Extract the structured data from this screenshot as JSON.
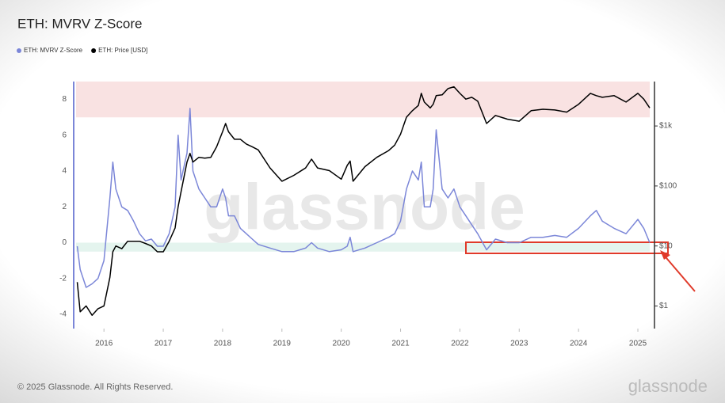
{
  "chart_data": {
    "type": "line",
    "title": "ETH: MVRV Z-Score",
    "watermark": "glassnode",
    "x": [
      2015.55,
      2015.6,
      2015.7,
      2015.8,
      2015.9,
      2016.0,
      2016.1,
      2016.15,
      2016.2,
      2016.3,
      2016.4,
      2016.5,
      2016.6,
      2016.7,
      2016.8,
      2016.9,
      2017.0,
      2017.1,
      2017.2,
      2017.25,
      2017.3,
      2017.4,
      2017.45,
      2017.5,
      2017.6,
      2017.7,
      2017.8,
      2017.9,
      2018.0,
      2018.05,
      2018.1,
      2018.2,
      2018.3,
      2018.4,
      2018.5,
      2018.6,
      2018.8,
      2019.0,
      2019.2,
      2019.4,
      2019.5,
      2019.6,
      2019.8,
      2020.0,
      2020.1,
      2020.15,
      2020.2,
      2020.4,
      2020.6,
      2020.8,
      2020.9,
      2021.0,
      2021.1,
      2021.2,
      2021.3,
      2021.35,
      2021.4,
      2021.5,
      2021.55,
      2021.6,
      2021.7,
      2021.8,
      2021.9,
      2022.0,
      2022.1,
      2022.2,
      2022.3,
      2022.45,
      2022.6,
      2022.8,
      2023.0,
      2023.2,
      2023.4,
      2023.6,
      2023.8,
      2024.0,
      2024.2,
      2024.3,
      2024.4,
      2024.6,
      2024.8,
      2025.0,
      2025.1,
      2025.2
    ],
    "series": [
      {
        "name": "ETH: MVRV Z-Score",
        "color": "#7b86d8",
        "axis": "y",
        "values": [
          -0.2,
          -1.5,
          -2.5,
          -2.3,
          -2.0,
          -1.0,
          2.5,
          4.5,
          3.0,
          2.0,
          1.8,
          1.2,
          0.5,
          0.1,
          0.2,
          -0.2,
          -0.2,
          0.5,
          2.0,
          6.0,
          3.5,
          5.0,
          7.5,
          4.0,
          3.0,
          2.5,
          2.0,
          2.0,
          3.0,
          2.5,
          1.5,
          1.5,
          0.8,
          0.5,
          0.2,
          -0.1,
          -0.3,
          -0.5,
          -0.5,
          -0.3,
          0.0,
          -0.3,
          -0.5,
          -0.4,
          -0.2,
          0.3,
          -0.5,
          -0.3,
          0.0,
          0.3,
          0.5,
          1.2,
          3.0,
          4.0,
          3.5,
          4.5,
          2.0,
          2.0,
          3.0,
          6.3,
          3.0,
          2.5,
          3.0,
          2.0,
          1.5,
          1.0,
          0.5,
          -0.4,
          0.2,
          0.0,
          0.0,
          0.3,
          0.3,
          0.4,
          0.3,
          0.8,
          1.5,
          1.8,
          1.2,
          0.8,
          0.5,
          1.3,
          0.8,
          0.0
        ]
      },
      {
        "name": "ETH: Price [USD]",
        "color": "#000000",
        "axis": "y2",
        "values": [
          2.5,
          0.8,
          1.0,
          0.7,
          0.9,
          1.0,
          3,
          8,
          10,
          9,
          12,
          12,
          12,
          11,
          10,
          8,
          8,
          12,
          20,
          45,
          80,
          250,
          350,
          250,
          300,
          290,
          300,
          450,
          800,
          1100,
          800,
          600,
          600,
          500,
          450,
          400,
          200,
          120,
          150,
          200,
          280,
          200,
          180,
          130,
          220,
          260,
          120,
          210,
          300,
          390,
          480,
          730,
          1400,
          1800,
          2200,
          3500,
          2500,
          2000,
          2300,
          3200,
          3300,
          4200,
          4500,
          3500,
          2800,
          3000,
          2600,
          1100,
          1500,
          1300,
          1200,
          1800,
          1900,
          1850,
          1700,
          2300,
          3500,
          3200,
          3000,
          3200,
          2500,
          3500,
          2800,
          2000
        ]
      }
    ],
    "xlim": [
      2015.53,
      2025.2
    ],
    "xticks": [
      2016,
      2017,
      2018,
      2019,
      2020,
      2021,
      2022,
      2023,
      2024,
      2025
    ],
    "ylim": [
      -4.8,
      9
    ],
    "yticks": [
      -4,
      -2,
      0,
      2,
      4,
      6,
      8
    ],
    "y2lim": [
      0.42,
      5500
    ],
    "y2log": true,
    "y2ticks": [
      {
        "value": 1,
        "label": "$1"
      },
      {
        "value": 10,
        "label": "$10"
      },
      {
        "value": 100,
        "label": "$100"
      },
      {
        "value": 1000,
        "label": "$1k"
      }
    ],
    "zones": [
      {
        "from": 7,
        "to": 9,
        "color": "#f9e2e2"
      },
      {
        "from": -0.5,
        "to": 0,
        "color": "#e4f4ee"
      }
    ],
    "legend": "top-left"
  },
  "footer": "© 2025 Glassnode. All Rights Reserved.",
  "logo": "glassnode"
}
